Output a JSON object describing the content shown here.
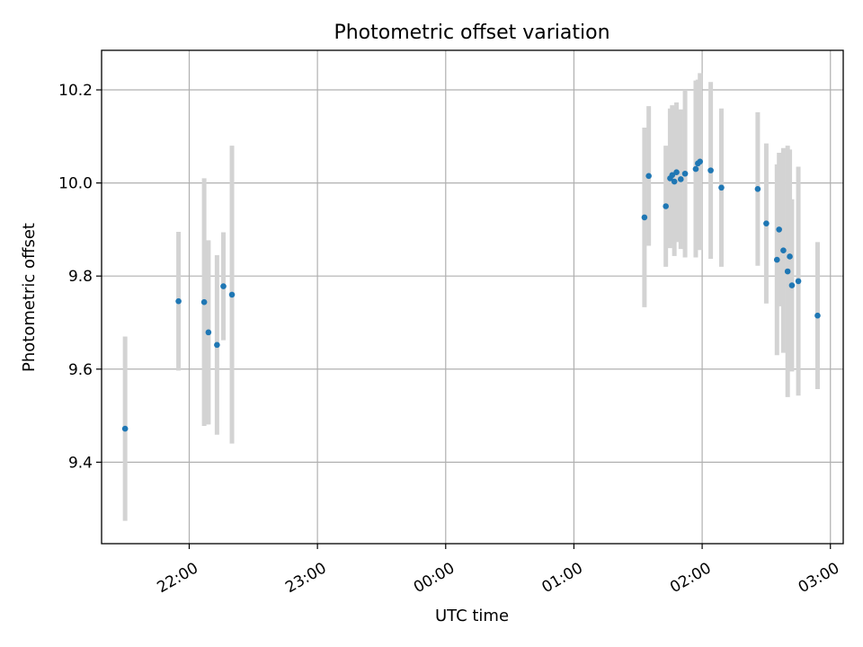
{
  "chart_data": {
    "type": "scatter",
    "title": "Photometric offset variation",
    "xlabel": "UTC time",
    "ylabel": "Photometric offset",
    "x_unit": "UTC time (HH:MM)",
    "x_ticks": [
      "22:00",
      "23:00",
      "00:00",
      "01:00",
      "02:00",
      "03:00"
    ],
    "y_ticks": [
      "9.4",
      "9.6",
      "9.8",
      "10.0",
      "10.2"
    ],
    "xlim": [
      "21:19",
      "03:06"
    ],
    "ylim": [
      9.225,
      10.285
    ],
    "grid": true,
    "marker_color": "#1f77b4",
    "errorbar_color": "#d3d3d3",
    "points": [
      {
        "t": "21:30",
        "y": 9.472,
        "err": 0.198
      },
      {
        "t": "21:55",
        "y": 9.746,
        "err": 0.149
      },
      {
        "t": "22:07",
        "y": 9.744,
        "err": 0.266
      },
      {
        "t": "22:09",
        "y": 9.679,
        "err": 0.198
      },
      {
        "t": "22:13",
        "y": 9.652,
        "err": 0.193
      },
      {
        "t": "22:16",
        "y": 9.778,
        "err": 0.116
      },
      {
        "t": "22:20",
        "y": 9.76,
        "err": 0.32
      },
      {
        "t": "01:33",
        "y": 9.926,
        "err": 0.193
      },
      {
        "t": "01:35",
        "y": 10.015,
        "err": 0.15
      },
      {
        "t": "01:43",
        "y": 9.95,
        "err": 0.13
      },
      {
        "t": "01:45",
        "y": 10.01,
        "err": 0.15
      },
      {
        "t": "01:46",
        "y": 10.017,
        "err": 0.15
      },
      {
        "t": "01:47",
        "y": 10.003,
        "err": 0.16
      },
      {
        "t": "01:48",
        "y": 10.023,
        "err": 0.15
      },
      {
        "t": "01:50",
        "y": 10.008,
        "err": 0.15
      },
      {
        "t": "01:52",
        "y": 10.02,
        "err": 0.18
      },
      {
        "t": "01:57",
        "y": 10.03,
        "err": 0.19
      },
      {
        "t": "01:58",
        "y": 10.042,
        "err": 0.18
      },
      {
        "t": "01:59",
        "y": 10.046,
        "err": 0.19
      },
      {
        "t": "02:04",
        "y": 10.027,
        "err": 0.19
      },
      {
        "t": "02:09",
        "y": 9.99,
        "err": 0.17
      },
      {
        "t": "02:26",
        "y": 9.987,
        "err": 0.165
      },
      {
        "t": "02:30",
        "y": 9.913,
        "err": 0.172
      },
      {
        "t": "02:35",
        "y": 9.835,
        "err": 0.205
      },
      {
        "t": "02:36",
        "y": 9.9,
        "err": 0.165
      },
      {
        "t": "02:38",
        "y": 9.855,
        "err": 0.22
      },
      {
        "t": "02:40",
        "y": 9.81,
        "err": 0.27
      },
      {
        "t": "02:41",
        "y": 9.842,
        "err": 0.23
      },
      {
        "t": "02:42",
        "y": 9.78,
        "err": 0.185
      },
      {
        "t": "02:45",
        "y": 9.789,
        "err": 0.246
      },
      {
        "t": "02:54",
        "y": 9.715,
        "err": 0.158
      }
    ]
  }
}
